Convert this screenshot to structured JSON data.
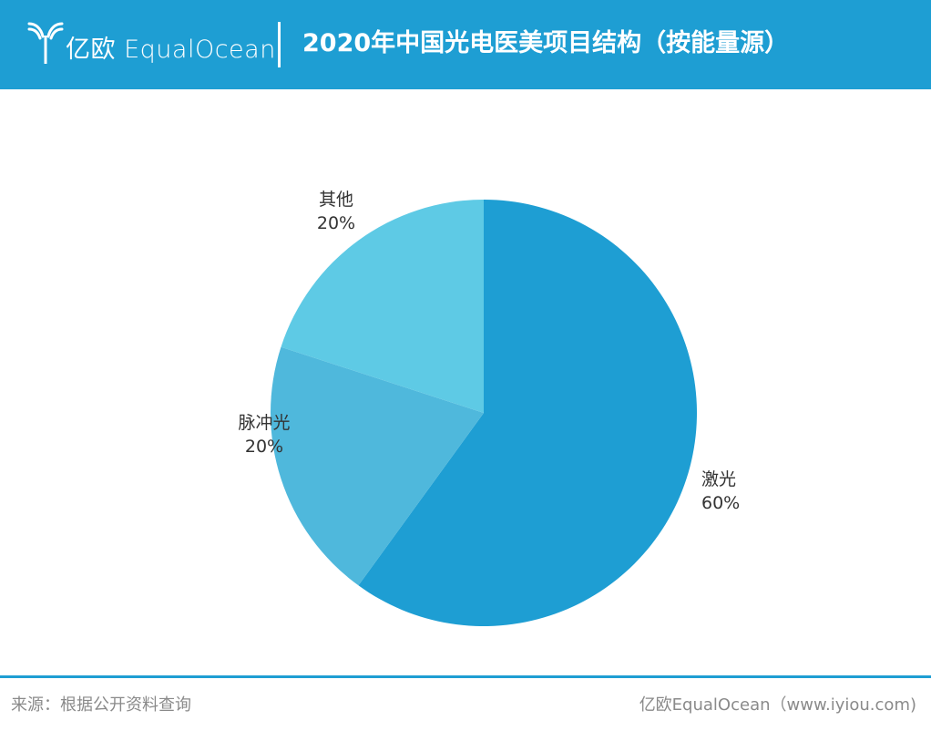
{
  "header": {
    "brand": "亿欧 EqualOcean",
    "title": "2020年中国光电医美项目结构（按能量源）",
    "background_color": "#1e9ed3"
  },
  "chart_data": {
    "type": "pie",
    "title": "2020年中国光电医美项目结构（按能量源）",
    "unit": "%",
    "slices": [
      {
        "label": "激光",
        "value": 60,
        "display": "60%",
        "color": "#1e9ed3"
      },
      {
        "label": "脉冲光",
        "value": 20,
        "display": "20%",
        "color": "#4fb8dc"
      },
      {
        "label": "其他",
        "value": 20,
        "display": "20%",
        "color": "#5ecae5"
      }
    ],
    "start_angle_deg": 0,
    "direction": "clockwise",
    "legend": "none",
    "labels": "outside"
  },
  "footer": {
    "source": "来源：根据公开资料查询",
    "credit": "亿欧EqualOcean（www.iyiou.com)"
  }
}
